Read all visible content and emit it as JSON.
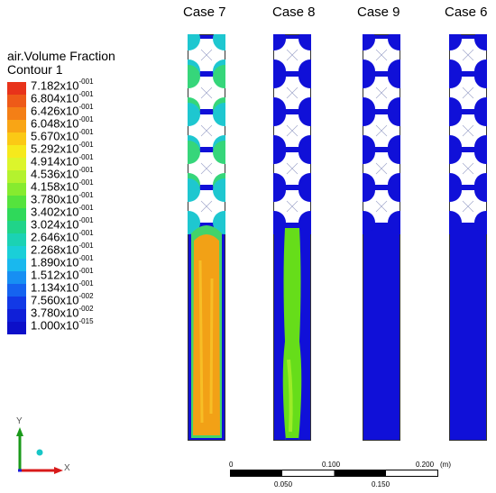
{
  "cases": [
    {
      "id": "case7",
      "title": "Case 7",
      "profile": "orange",
      "baffle_rows": 5,
      "baffles_end": 0.4
    },
    {
      "id": "case8",
      "title": "Case 8",
      "profile": "green",
      "baffle_rows": 5,
      "baffles_end": 0.38
    },
    {
      "id": "case9",
      "title": "Case 9",
      "profile": "blue",
      "baffle_rows": 5,
      "baffles_end": 0.37
    },
    {
      "id": "case6",
      "title": "Case 6",
      "profile": "blue",
      "baffle_rows": 5,
      "baffles_end": 0.37
    }
  ],
  "legend": {
    "title": "air.Volume Fraction",
    "subtitle": "Contour 1",
    "levels": [
      {
        "mantissa": "7.182x10",
        "exp": "-001",
        "color": "#e8331a"
      },
      {
        "mantissa": "6.804x10",
        "exp": "-001",
        "color": "#ee5a18"
      },
      {
        "mantissa": "6.426x10",
        "exp": "-001",
        "color": "#f47f16"
      },
      {
        "mantissa": "6.048x10",
        "exp": "-001",
        "color": "#f9a515"
      },
      {
        "mantissa": "5.670x10",
        "exp": "-001",
        "color": "#fbc915"
      },
      {
        "mantissa": "5.292x10",
        "exp": "-001",
        "color": "#f6e91c"
      },
      {
        "mantissa": "4.914x10",
        "exp": "-001",
        "color": "#dcf52b"
      },
      {
        "mantissa": "4.536x10",
        "exp": "-001",
        "color": "#b4f22e"
      },
      {
        "mantissa": "4.158x10",
        "exp": "-001",
        "color": "#86eb2f"
      },
      {
        "mantissa": "3.780x10",
        "exp": "-001",
        "color": "#55e33d"
      },
      {
        "mantissa": "3.402x10",
        "exp": "-001",
        "color": "#2fd95a"
      },
      {
        "mantissa": "3.024x10",
        "exp": "-001",
        "color": "#20d489"
      },
      {
        "mantissa": "2.646x10",
        "exp": "-001",
        "color": "#1bd2b4"
      },
      {
        "mantissa": "2.268x10",
        "exp": "-001",
        "color": "#1acfd8"
      },
      {
        "mantissa": "1.890x10",
        "exp": "-001",
        "color": "#19b8ee"
      },
      {
        "mantissa": "1.512x10",
        "exp": "-001",
        "color": "#178ff3"
      },
      {
        "mantissa": "1.134x10",
        "exp": "-001",
        "color": "#1563f0"
      },
      {
        "mantissa": "7.560x10",
        "exp": "-002",
        "color": "#1239e6"
      },
      {
        "mantissa": "3.780x10",
        "exp": "-002",
        "color": "#0f1fd8"
      },
      {
        "mantissa": "1.000x10",
        "exp": "-015",
        "color": "#0c0fc9"
      }
    ]
  },
  "scale_bar": {
    "top_labels": [
      "0",
      "0.100",
      "0.200"
    ],
    "unit": "(m)",
    "bottom_labels": [
      "0.050",
      "0.150"
    ]
  },
  "axes": {
    "y": "Y",
    "x": "X"
  },
  "colors": {
    "blue": "#1010d8",
    "green": "#66dd1a",
    "orange": "#f2a116",
    "white": "#ffffff"
  }
}
